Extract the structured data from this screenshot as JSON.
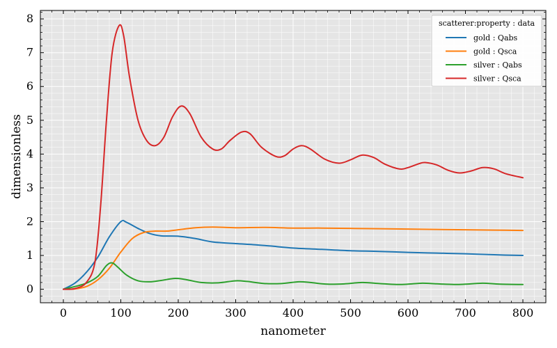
{
  "chart_data": {
    "type": "line",
    "title": "",
    "xlabel": "nanometer",
    "ylabel": "dimensionless",
    "xlim": [
      -40,
      840
    ],
    "ylim": [
      -0.4,
      8.25
    ],
    "xticks": [
      0,
      100,
      200,
      300,
      400,
      500,
      600,
      700,
      800
    ],
    "yticks": [
      0,
      1,
      2,
      3,
      4,
      5,
      6,
      7,
      8
    ],
    "grid": true,
    "legend": {
      "title": "scatterer:property : data",
      "placement": "top-right"
    },
    "colors": {
      "plot_bg": "#e5e5e5",
      "grid": "#ffffff"
    },
    "series": [
      {
        "name": "gold : Qabs",
        "color": "#1f77b4",
        "points": [
          [
            0,
            0
          ],
          [
            20,
            0.18
          ],
          [
            40,
            0.5
          ],
          [
            60,
            0.95
          ],
          [
            80,
            1.55
          ],
          [
            100,
            2.0
          ],
          [
            110,
            1.98
          ],
          [
            130,
            1.8
          ],
          [
            150,
            1.65
          ],
          [
            170,
            1.58
          ],
          [
            200,
            1.57
          ],
          [
            230,
            1.5
          ],
          [
            260,
            1.4
          ],
          [
            300,
            1.35
          ],
          [
            330,
            1.32
          ],
          [
            360,
            1.28
          ],
          [
            400,
            1.22
          ],
          [
            450,
            1.18
          ],
          [
            500,
            1.14
          ],
          [
            550,
            1.12
          ],
          [
            600,
            1.09
          ],
          [
            650,
            1.07
          ],
          [
            700,
            1.05
          ],
          [
            750,
            1.02
          ],
          [
            800,
            1.0
          ]
        ]
      },
      {
        "name": "gold : Qsca",
        "color": "#ff7f0e",
        "points": [
          [
            0,
            0
          ],
          [
            20,
            0.01
          ],
          [
            40,
            0.08
          ],
          [
            60,
            0.28
          ],
          [
            80,
            0.62
          ],
          [
            100,
            1.1
          ],
          [
            120,
            1.5
          ],
          [
            140,
            1.68
          ],
          [
            160,
            1.72
          ],
          [
            180,
            1.72
          ],
          [
            200,
            1.76
          ],
          [
            230,
            1.82
          ],
          [
            260,
            1.84
          ],
          [
            300,
            1.82
          ],
          [
            350,
            1.83
          ],
          [
            400,
            1.81
          ],
          [
            450,
            1.81
          ],
          [
            500,
            1.8
          ],
          [
            550,
            1.79
          ],
          [
            600,
            1.78
          ],
          [
            650,
            1.77
          ],
          [
            700,
            1.76
          ],
          [
            750,
            1.75
          ],
          [
            800,
            1.74
          ]
        ]
      },
      {
        "name": "silver : Qabs",
        "color": "#2ca02c",
        "points": [
          [
            0,
            0
          ],
          [
            20,
            0.08
          ],
          [
            40,
            0.18
          ],
          [
            60,
            0.38
          ],
          [
            75,
            0.7
          ],
          [
            85,
            0.78
          ],
          [
            95,
            0.65
          ],
          [
            110,
            0.42
          ],
          [
            130,
            0.25
          ],
          [
            150,
            0.22
          ],
          [
            170,
            0.26
          ],
          [
            195,
            0.32
          ],
          [
            215,
            0.28
          ],
          [
            240,
            0.2
          ],
          [
            270,
            0.19
          ],
          [
            300,
            0.25
          ],
          [
            320,
            0.23
          ],
          [
            350,
            0.17
          ],
          [
            380,
            0.17
          ],
          [
            410,
            0.22
          ],
          [
            430,
            0.2
          ],
          [
            460,
            0.15
          ],
          [
            490,
            0.16
          ],
          [
            520,
            0.2
          ],
          [
            550,
            0.17
          ],
          [
            580,
            0.14
          ],
          [
            600,
            0.15
          ],
          [
            625,
            0.18
          ],
          [
            650,
            0.16
          ],
          [
            680,
            0.14
          ],
          [
            700,
            0.15
          ],
          [
            730,
            0.18
          ],
          [
            760,
            0.15
          ],
          [
            800,
            0.14
          ]
        ]
      },
      {
        "name": "silver : Qsca",
        "color": "#d62728",
        "points": [
          [
            0,
            0
          ],
          [
            20,
            0.02
          ],
          [
            40,
            0.2
          ],
          [
            55,
            0.8
          ],
          [
            65,
            2.5
          ],
          [
            75,
            5.0
          ],
          [
            85,
            7.0
          ],
          [
            97,
            7.8
          ],
          [
            105,
            7.5
          ],
          [
            115,
            6.3
          ],
          [
            130,
            5.0
          ],
          [
            145,
            4.4
          ],
          [
            160,
            4.25
          ],
          [
            175,
            4.5
          ],
          [
            190,
            5.1
          ],
          [
            205,
            5.42
          ],
          [
            220,
            5.2
          ],
          [
            240,
            4.5
          ],
          [
            260,
            4.15
          ],
          [
            275,
            4.15
          ],
          [
            290,
            4.4
          ],
          [
            310,
            4.65
          ],
          [
            325,
            4.6
          ],
          [
            345,
            4.2
          ],
          [
            370,
            3.93
          ],
          [
            385,
            3.95
          ],
          [
            400,
            4.15
          ],
          [
            415,
            4.25
          ],
          [
            430,
            4.15
          ],
          [
            455,
            3.85
          ],
          [
            480,
            3.73
          ],
          [
            500,
            3.83
          ],
          [
            520,
            3.97
          ],
          [
            540,
            3.9
          ],
          [
            560,
            3.7
          ],
          [
            585,
            3.56
          ],
          [
            600,
            3.6
          ],
          [
            620,
            3.72
          ],
          [
            630,
            3.75
          ],
          [
            650,
            3.68
          ],
          [
            670,
            3.52
          ],
          [
            690,
            3.44
          ],
          [
            710,
            3.5
          ],
          [
            730,
            3.6
          ],
          [
            750,
            3.56
          ],
          [
            770,
            3.42
          ],
          [
            800,
            3.3
          ]
        ]
      }
    ]
  }
}
